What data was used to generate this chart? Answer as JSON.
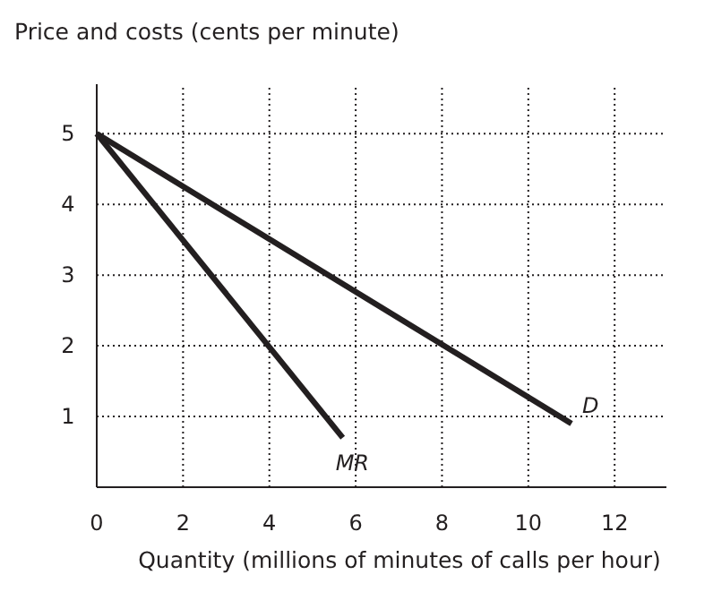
{
  "chart_data": {
    "type": "line",
    "ylabel": "Price and costs (cents per minute)",
    "xlabel": "Quantity (millions of minutes of calls per hour)",
    "xlim": [
      0,
      13.2
    ],
    "ylim": [
      0,
      5.7
    ],
    "xticks": [
      0,
      2,
      4,
      6,
      8,
      10,
      12
    ],
    "yticks": [
      1,
      2,
      3,
      4,
      5
    ],
    "grid": true,
    "line_style": "solid",
    "marker": "none",
    "series": [
      {
        "name": "D",
        "color": "#231f20",
        "x": [
          0,
          11
        ],
        "values": [
          5,
          0.9
        ]
      },
      {
        "name": "MR",
        "color": "#231f20",
        "x": [
          0,
          5.7
        ],
        "values": [
          5,
          0.7
        ]
      }
    ]
  }
}
